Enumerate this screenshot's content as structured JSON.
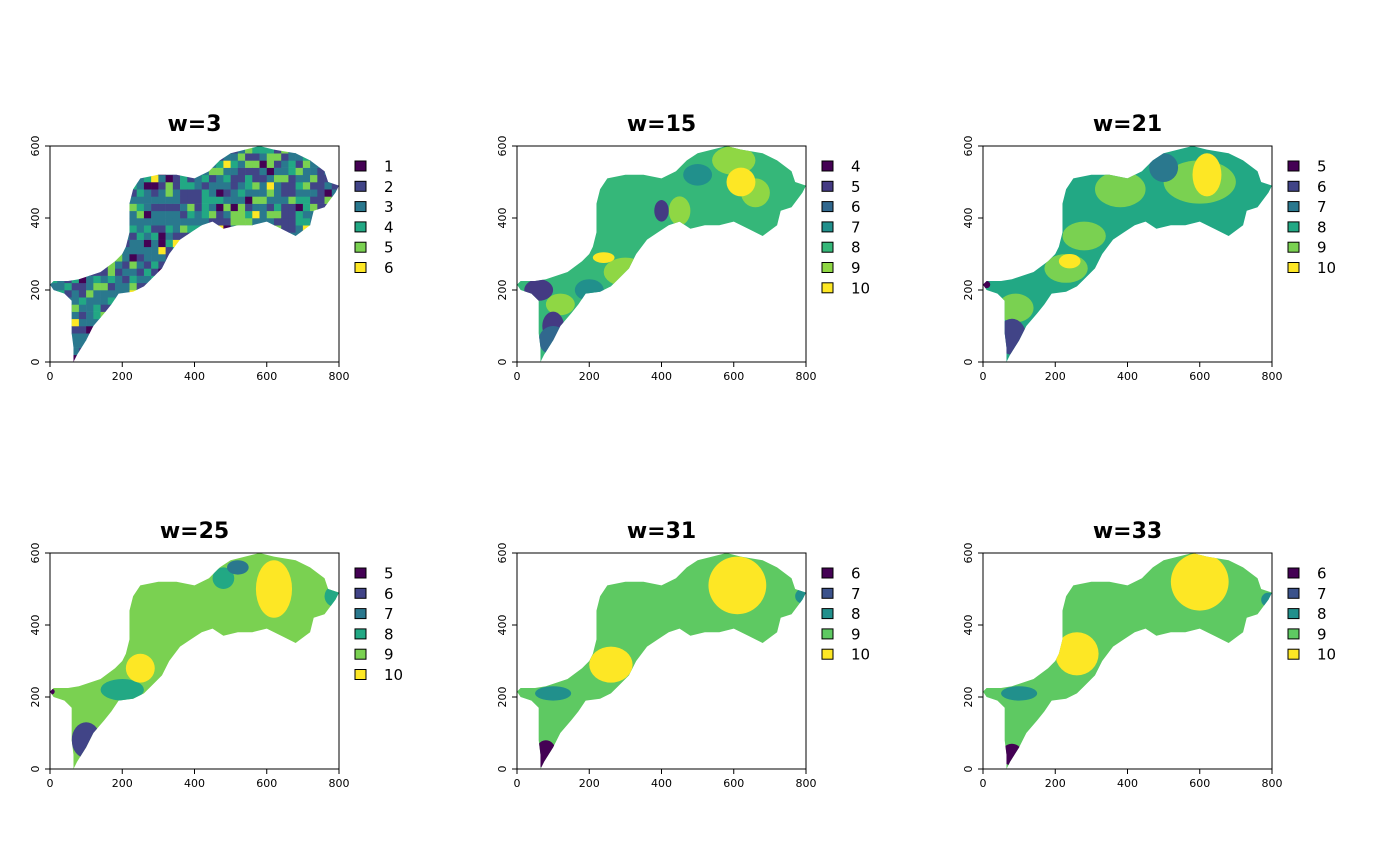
{
  "panels": [
    {
      "title": "w=3",
      "xlim": [
        0,
        800
      ],
      "ylim": [
        0,
        600
      ],
      "xticks": [
        0,
        200,
        400,
        600,
        800
      ],
      "yticks": [
        0,
        200,
        400,
        600
      ],
      "legend": {
        "classes": [
          1,
          2,
          3,
          4,
          5,
          6
        ],
        "colors": [
          "#440154",
          "#414487",
          "#2a788e",
          "#22a884",
          "#7ad151",
          "#fde725"
        ]
      }
    },
    {
      "title": "w=15",
      "xlim": [
        0,
        800
      ],
      "ylim": [
        0,
        600
      ],
      "xticks": [
        0,
        200,
        400,
        600,
        800
      ],
      "yticks": [
        0,
        200,
        400,
        600
      ],
      "legend": {
        "classes": [
          4,
          5,
          6,
          7,
          8,
          9,
          10
        ],
        "colors": [
          "#440154",
          "#443a83",
          "#31688e",
          "#21908c",
          "#35b779",
          "#8fd744",
          "#fde725"
        ]
      }
    },
    {
      "title": "w=21",
      "xlim": [
        0,
        800
      ],
      "ylim": [
        0,
        600
      ],
      "xticks": [
        0,
        200,
        400,
        600,
        800
      ],
      "yticks": [
        0,
        200,
        400,
        600
      ],
      "legend": {
        "classes": [
          5,
          6,
          7,
          8,
          9,
          10
        ],
        "colors": [
          "#440154",
          "#414487",
          "#2a788e",
          "#22a884",
          "#7ad151",
          "#fde725"
        ]
      }
    },
    {
      "title": "w=25",
      "xlim": [
        0,
        800
      ],
      "ylim": [
        0,
        600
      ],
      "xticks": [
        0,
        200,
        400,
        600,
        800
      ],
      "yticks": [
        0,
        200,
        400,
        600
      ],
      "legend": {
        "classes": [
          5,
          6,
          7,
          8,
          9,
          10
        ],
        "colors": [
          "#440154",
          "#414487",
          "#2a788e",
          "#22a884",
          "#7ad151",
          "#fde725"
        ]
      }
    },
    {
      "title": "w=31",
      "xlim": [
        0,
        800
      ],
      "ylim": [
        0,
        600
      ],
      "xticks": [
        0,
        200,
        400,
        600,
        800
      ],
      "yticks": [
        0,
        200,
        400,
        600
      ],
      "legend": {
        "classes": [
          6,
          7,
          8,
          9,
          10
        ],
        "colors": [
          "#440154",
          "#3b528b",
          "#21908c",
          "#5ec962",
          "#fde725"
        ]
      }
    },
    {
      "title": "w=33",
      "xlim": [
        0,
        800
      ],
      "ylim": [
        0,
        600
      ],
      "xticks": [
        0,
        200,
        400,
        600,
        800
      ],
      "yticks": [
        0,
        200,
        400,
        600
      ],
      "legend": {
        "classes": [
          6,
          7,
          8,
          9,
          10
        ],
        "colors": [
          "#440154",
          "#3b528b",
          "#21908c",
          "#5ec962",
          "#fde725"
        ]
      }
    }
  ]
}
